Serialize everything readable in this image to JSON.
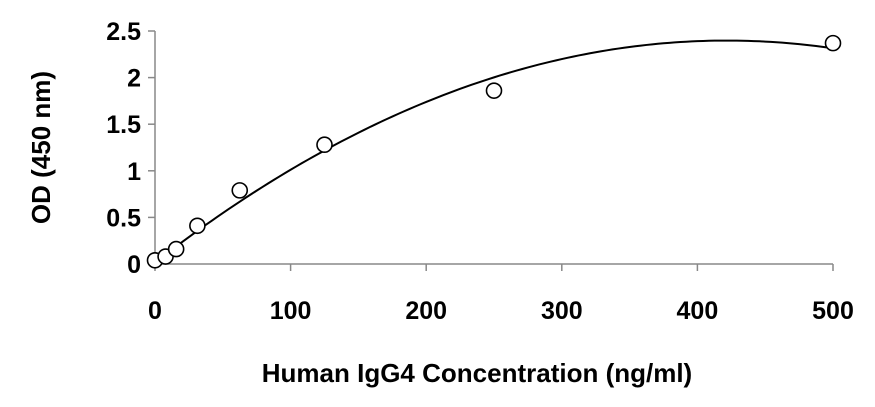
{
  "chart_data": {
    "type": "scatter",
    "title": "",
    "xlabel": "Human IgG4 Concentration (ng/ml)",
    "ylabel": "OD (450 nm)",
    "xlim": [
      0,
      500
    ],
    "ylim": [
      0,
      2.5
    ],
    "x_ticks": [
      0,
      100,
      200,
      300,
      400,
      500
    ],
    "y_ticks": [
      0,
      0.5,
      1,
      1.5,
      2,
      2.5
    ],
    "x_tick_labels": [
      "0",
      "100",
      "200",
      "300",
      "400",
      "500"
    ],
    "y_tick_labels": [
      "0",
      "0.5",
      "1",
      "1.5",
      "2",
      "2.5"
    ],
    "grid": false,
    "legend": "none",
    "marker": "open-circle",
    "series": [
      {
        "x": [
          0,
          7.8,
          15.6,
          31.25,
          62.5,
          125,
          250,
          500
        ],
        "y": [
          0.04,
          0.08,
          0.16,
          0.41,
          0.79,
          1.28,
          1.86,
          2.37
        ]
      }
    ],
    "fit": {
      "type": "polynomial-2",
      "coefficients": [
        0.015,
        0.0113,
        -1.34e-05
      ],
      "x_range": [
        0,
        500
      ]
    },
    "colors": {
      "marker_stroke": "#000000",
      "line": "#000000"
    }
  }
}
